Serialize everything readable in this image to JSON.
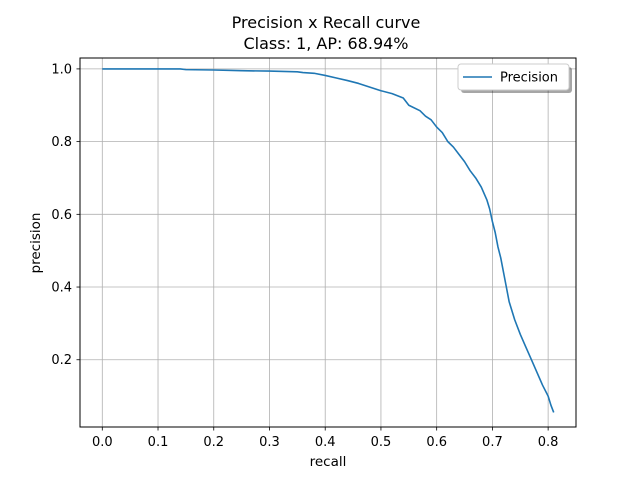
{
  "chart_data": {
    "type": "line",
    "title": "Precision x Recall curve",
    "subtitle": "Class: 1, AP: 68.94%",
    "xlabel": "recall",
    "ylabel": "precision",
    "xlim": [
      -0.04,
      0.85
    ],
    "ylim": [
      0.015,
      1.03
    ],
    "x_ticks": [
      "0.0",
      "0.1",
      "0.2",
      "0.3",
      "0.4",
      "0.5",
      "0.6",
      "0.7",
      "0.8"
    ],
    "y_ticks": [
      "0.2",
      "0.4",
      "0.6",
      "0.8",
      "1.0"
    ],
    "grid": true,
    "legend_position": "top-right",
    "series": [
      {
        "name": "Precision",
        "color": "#1f77b4",
        "x": [
          0.0,
          0.05,
          0.1,
          0.14,
          0.15,
          0.2,
          0.25,
          0.3,
          0.35,
          0.36,
          0.38,
          0.4,
          0.42,
          0.44,
          0.46,
          0.48,
          0.5,
          0.52,
          0.54,
          0.55,
          0.57,
          0.58,
          0.59,
          0.6,
          0.61,
          0.62,
          0.63,
          0.64,
          0.65,
          0.66,
          0.67,
          0.68,
          0.69,
          0.695,
          0.7,
          0.705,
          0.71,
          0.715,
          0.72,
          0.725,
          0.73,
          0.74,
          0.75,
          0.76,
          0.77,
          0.78,
          0.79,
          0.8,
          0.805,
          0.81
        ],
        "y": [
          1.0,
          1.0,
          1.0,
          1.0,
          0.998,
          0.997,
          0.995,
          0.994,
          0.992,
          0.99,
          0.988,
          0.982,
          0.975,
          0.968,
          0.96,
          0.95,
          0.94,
          0.932,
          0.92,
          0.9,
          0.885,
          0.87,
          0.86,
          0.84,
          0.825,
          0.8,
          0.785,
          0.765,
          0.745,
          0.72,
          0.7,
          0.675,
          0.64,
          0.615,
          0.58,
          0.55,
          0.51,
          0.48,
          0.44,
          0.4,
          0.36,
          0.31,
          0.27,
          0.235,
          0.2,
          0.165,
          0.13,
          0.1,
          0.075,
          0.055
        ]
      }
    ]
  }
}
